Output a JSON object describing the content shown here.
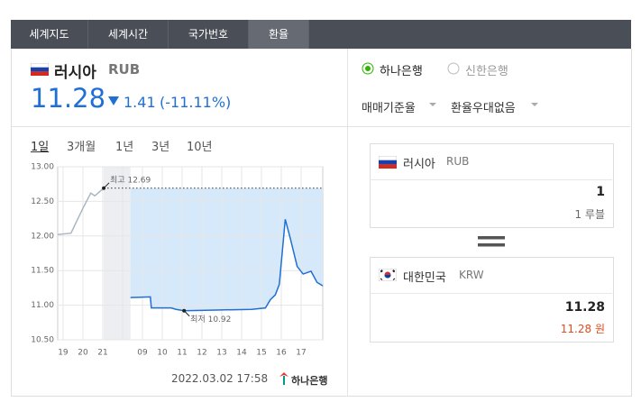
{
  "tabs": [
    "세계지도",
    "세계시간",
    "국가번호",
    "환율"
  ],
  "currency": {
    "name": "러시아",
    "code": "RUB",
    "rate": "11.28",
    "change": "1.41",
    "change_pct": "(-11.11%)"
  },
  "banks": [
    "하나은행",
    "신한은행"
  ],
  "options": [
    "매매기준율",
    "환율우대없음"
  ],
  "periods": [
    "1일",
    "3개월",
    "1년",
    "3년",
    "10년"
  ],
  "converter": {
    "from": {
      "name": "러시아",
      "code": "RUB",
      "amount": "1",
      "unit_amount": "1 루블"
    },
    "to": {
      "name": "대한민국",
      "code": "KRW",
      "amount": "11.28",
      "unit_amount": "11.28 원"
    }
  },
  "footer": {
    "timestamp": "2022.03.02 17:58",
    "source": "하나은행"
  },
  "chart_data": {
    "type": "line",
    "series": [
      {
        "color": "#aab6c4",
        "x": [
          -0.27,
          0.4,
          1.0,
          1.4,
          1.6,
          1.8,
          2.05
        ],
        "values": [
          12.02,
          12.04,
          12.4,
          12.62,
          12.58,
          12.63,
          12.69
        ]
      },
      {
        "color": "#1f6fd6",
        "x": [
          3.4,
          4.4,
          4.45,
          5.45,
          5.7,
          6.1,
          7.7,
          9.5,
          10.2,
          10.45,
          10.7,
          10.9,
          11.2,
          11.45,
          11.8,
          12.1,
          12.5,
          12.8,
          13.09
        ],
        "values": [
          11.11,
          11.12,
          10.96,
          10.96,
          10.94,
          10.92,
          10.93,
          10.94,
          10.96,
          11.08,
          11.15,
          11.3,
          12.24,
          11.97,
          11.56,
          11.45,
          11.49,
          11.33,
          11.28
        ]
      }
    ],
    "xlim": [
      -0.27,
      13.09
    ],
    "xticks": [
      {
        "value": 0,
        "label": "19"
      },
      {
        "value": 1,
        "label": "20"
      },
      {
        "value": 2,
        "label": "21"
      },
      {
        "value": 3,
        "label": null
      },
      {
        "value": 4,
        "label": "09"
      },
      {
        "value": 5,
        "label": "10"
      },
      {
        "value": 6,
        "label": "11"
      },
      {
        "value": 7,
        "label": "12"
      },
      {
        "value": 8,
        "label": "13"
      },
      {
        "value": 9,
        "label": "14"
      },
      {
        "value": 10,
        "label": "15"
      },
      {
        "value": 11,
        "label": "16"
      },
      {
        "value": 12,
        "label": "17"
      }
    ],
    "ylim": [
      10.5,
      13.0
    ],
    "yticks": [
      {
        "value": 10.5,
        "label": "10.50"
      },
      {
        "value": 11,
        "label": "11.00"
      },
      {
        "value": 11.5,
        "label": "11.50"
      },
      {
        "value": 12,
        "label": "12.00"
      },
      {
        "value": 12.5,
        "label": "12.50"
      },
      {
        "value": 13,
        "label": "13.00"
      }
    ],
    "grid": true,
    "annotations": [
      {
        "text": "최고 12.69",
        "x": 2.05,
        "y": 12.69
      },
      {
        "text": "최저 10.92",
        "x": 6.1,
        "y": 10.92
      }
    ]
  }
}
